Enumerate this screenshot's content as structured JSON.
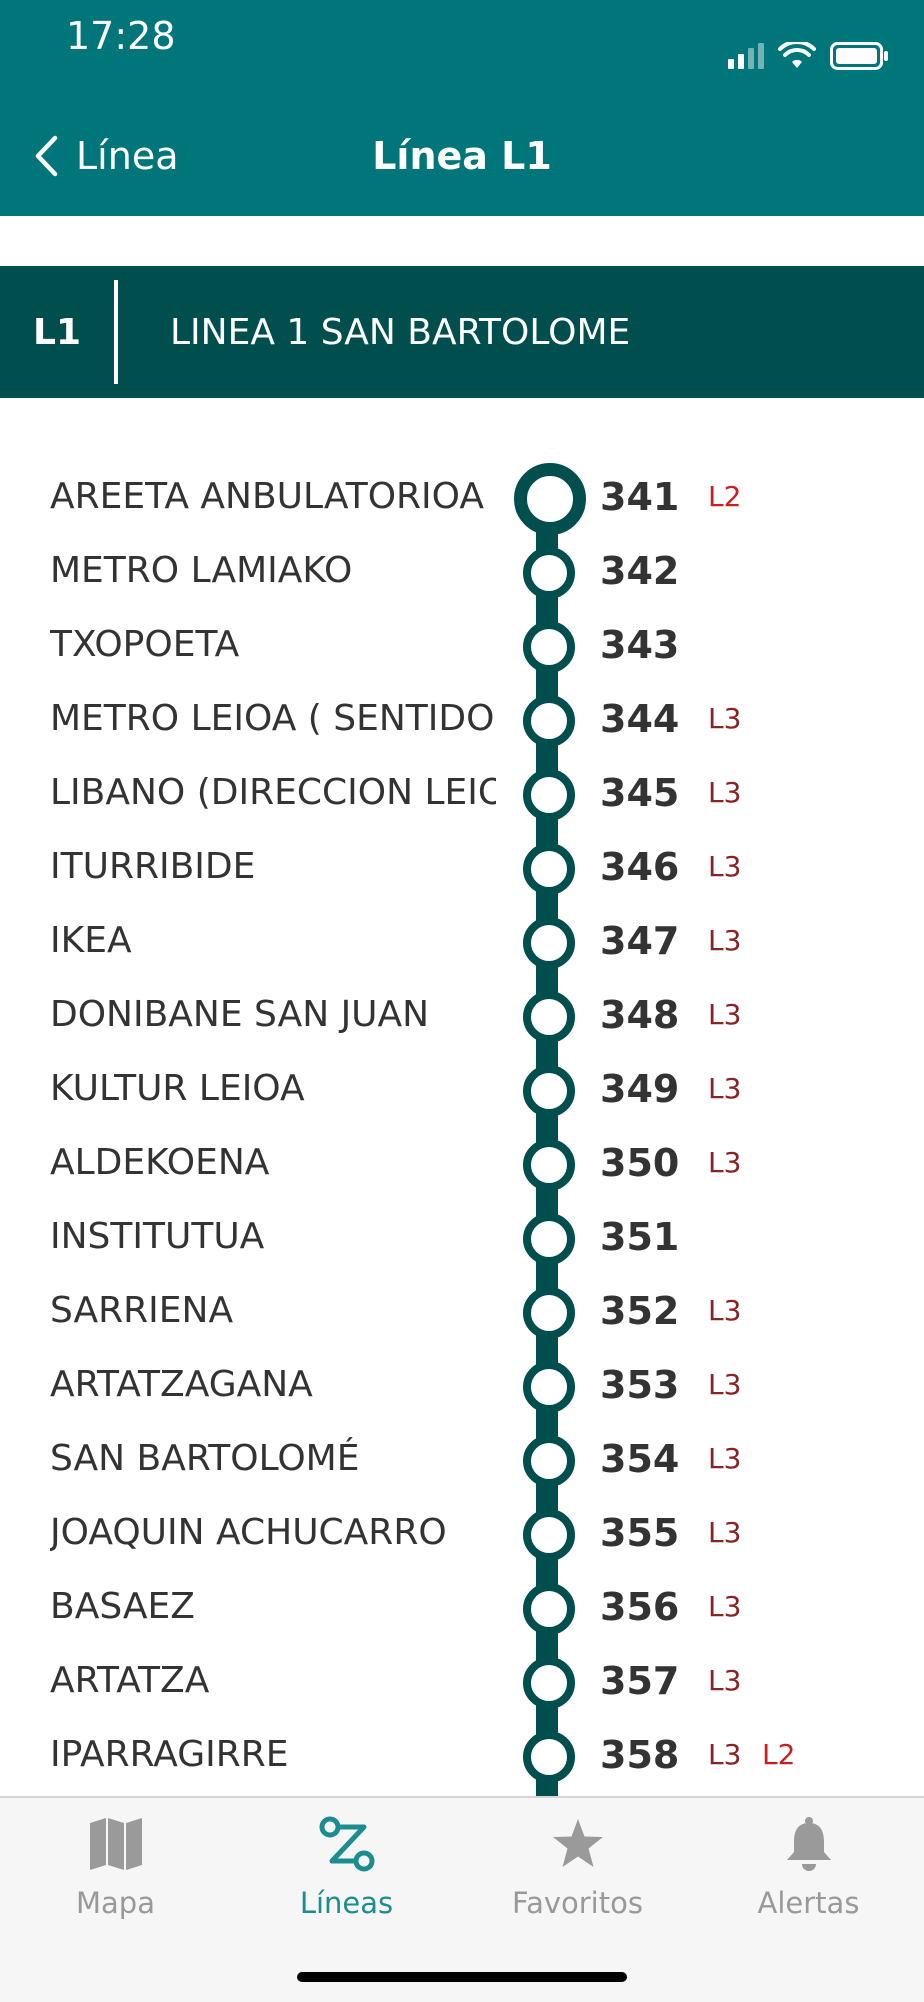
{
  "status_bar": {
    "time": "17:28"
  },
  "nav": {
    "back_label": "Línea",
    "title": "Línea L1"
  },
  "line": {
    "code": "L1",
    "name": "LINEA 1 SAN BARTOLOME"
  },
  "colors": {
    "header": "#00767a",
    "line_dark": "#004f4e",
    "tab_active": "#1b8c8f",
    "tab_inactive": "#999999",
    "conn_L2": "#cc1e1e",
    "conn_L3": "#8a2323"
  },
  "stops": [
    {
      "name": "AREETA ANBULATORIOA",
      "code": "341",
      "connections": [
        "L2"
      ]
    },
    {
      "name": "METRO LAMIAKO",
      "code": "342",
      "connections": []
    },
    {
      "name": "TXOPOETA",
      "code": "343",
      "connections": []
    },
    {
      "name": "METRO LEIOA ( SENTIDO",
      "code": "344",
      "connections": [
        "L3"
      ]
    },
    {
      "name": "LIBANO (DIRECCION LEIOA",
      "code": "345",
      "connections": [
        "L3"
      ]
    },
    {
      "name": "ITURRIBIDE",
      "code": "346",
      "connections": [
        "L3"
      ]
    },
    {
      "name": "IKEA",
      "code": "347",
      "connections": [
        "L3"
      ]
    },
    {
      "name": "DONIBANE SAN JUAN",
      "code": "348",
      "connections": [
        "L3"
      ]
    },
    {
      "name": "KULTUR LEIOA",
      "code": "349",
      "connections": [
        "L3"
      ]
    },
    {
      "name": "ALDEKOENA",
      "code": "350",
      "connections": [
        "L3"
      ]
    },
    {
      "name": "INSTITUTUA",
      "code": "351",
      "connections": []
    },
    {
      "name": "SARRIENA",
      "code": "352",
      "connections": [
        "L3"
      ]
    },
    {
      "name": "ARTATZAGANA",
      "code": "353",
      "connections": [
        "L3"
      ]
    },
    {
      "name": "SAN BARTOLOMÉ",
      "code": "354",
      "connections": [
        "L3"
      ]
    },
    {
      "name": "JOAQUIN ACHUCARRO",
      "code": "355",
      "connections": [
        "L3"
      ]
    },
    {
      "name": "BASAEZ",
      "code": "356",
      "connections": [
        "L3"
      ]
    },
    {
      "name": "ARTATZA",
      "code": "357",
      "connections": [
        "L3"
      ]
    },
    {
      "name": "IPARRAGIRRE",
      "code": "358",
      "connections": [
        "L3",
        "L2"
      ]
    }
  ],
  "tabs": [
    {
      "label": "Mapa",
      "icon": "map-icon",
      "active": false
    },
    {
      "label": "Líneas",
      "icon": "route-icon",
      "active": true
    },
    {
      "label": "Favoritos",
      "icon": "star-icon",
      "active": false
    },
    {
      "label": "Alertas",
      "icon": "bell-icon",
      "active": false
    }
  ]
}
